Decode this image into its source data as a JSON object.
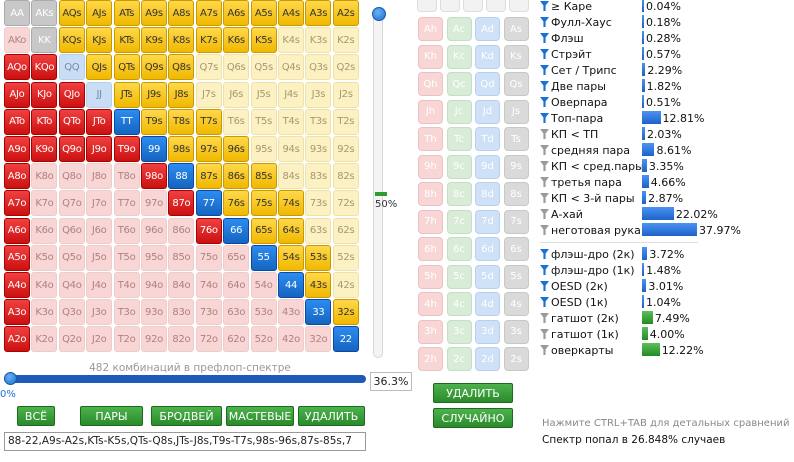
{
  "matrix": {
    "rows": [
      [
        "AA",
        "AKs",
        "AQs",
        "AJs",
        "ATs",
        "A9s",
        "A8s",
        "A7s",
        "A6s",
        "A5s",
        "A4s",
        "A3s",
        "A2s"
      ],
      [
        "AKo",
        "KK",
        "KQs",
        "KJs",
        "KTs",
        "K9s",
        "K8s",
        "K7s",
        "K6s",
        "K5s",
        "K4s",
        "K3s",
        "K2s"
      ],
      [
        "AQo",
        "KQo",
        "QQ",
        "QJs",
        "QTs",
        "Q9s",
        "Q8s",
        "Q7s",
        "Q6s",
        "Q5s",
        "Q4s",
        "Q3s",
        "Q2s"
      ],
      [
        "AJo",
        "KJo",
        "QJo",
        "JJ",
        "JTs",
        "J9s",
        "J8s",
        "J7s",
        "J6s",
        "J5s",
        "J4s",
        "J3s",
        "J2s"
      ],
      [
        "ATo",
        "KTo",
        "QTo",
        "JTo",
        "TT",
        "T9s",
        "T8s",
        "T7s",
        "T6s",
        "T5s",
        "T4s",
        "T3s",
        "T2s"
      ],
      [
        "A9o",
        "K9o",
        "Q9o",
        "J9o",
        "T9o",
        "99",
        "98s",
        "97s",
        "96s",
        "95s",
        "94s",
        "93s",
        "92s"
      ],
      [
        "A8o",
        "K8o",
        "Q8o",
        "J8o",
        "T8o",
        "98o",
        "88",
        "87s",
        "86s",
        "85s",
        "84s",
        "83s",
        "82s"
      ],
      [
        "A7o",
        "K7o",
        "Q7o",
        "J7o",
        "T7o",
        "97o",
        "87o",
        "77",
        "76s",
        "75s",
        "74s",
        "73s",
        "72s"
      ],
      [
        "A6o",
        "K6o",
        "Q6o",
        "J6o",
        "T6o",
        "96o",
        "86o",
        "76o",
        "66",
        "65s",
        "64s",
        "63s",
        "62s"
      ],
      [
        "A5o",
        "K5o",
        "Q5o",
        "J5o",
        "T5o",
        "95o",
        "85o",
        "75o",
        "65o",
        "55",
        "54s",
        "53s",
        "52s"
      ],
      [
        "A4o",
        "K4o",
        "Q4o",
        "J4o",
        "T4o",
        "94o",
        "84o",
        "74o",
        "64o",
        "54o",
        "44",
        "43s",
        "42s"
      ],
      [
        "A3o",
        "K3o",
        "Q3o",
        "J3o",
        "T3o",
        "93o",
        "83o",
        "73o",
        "63o",
        "53o",
        "43o",
        "33",
        "32s"
      ],
      [
        "A2o",
        "K2o",
        "Q2o",
        "J2o",
        "T2o",
        "92o",
        "82o",
        "72o",
        "62o",
        "52o",
        "42o",
        "32o",
        "22"
      ]
    ],
    "states": [
      [
        "g",
        "l",
        "s",
        "s",
        "s",
        "s",
        "s",
        "s",
        "s",
        "s",
        "s",
        "s",
        "s"
      ],
      [
        "p",
        "g",
        "s",
        "s",
        "s",
        "s",
        "s",
        "s",
        "s",
        "s",
        "l",
        "l",
        "l"
      ],
      [
        "o",
        "o",
        "l",
        "s",
        "s",
        "s",
        "s",
        "l",
        "l",
        "l",
        "l",
        "l",
        "l"
      ],
      [
        "o",
        "o",
        "o",
        "l",
        "s",
        "s",
        "s",
        "l",
        "l",
        "l",
        "l",
        "l",
        "l"
      ],
      [
        "o",
        "o",
        "o",
        "o",
        "b",
        "s",
        "s",
        "s",
        "l",
        "l",
        "l",
        "l",
        "l"
      ],
      [
        "o",
        "o",
        "o",
        "o",
        "o",
        "b",
        "s",
        "s",
        "s",
        "l",
        "l",
        "l",
        "l"
      ],
      [
        "o",
        "p",
        "p",
        "p",
        "p",
        "o",
        "b",
        "s",
        "s",
        "s",
        "l",
        "l",
        "l"
      ],
      [
        "o",
        "p",
        "p",
        "p",
        "p",
        "p",
        "o",
        "b",
        "s",
        "s",
        "s",
        "l",
        "l"
      ],
      [
        "o",
        "p",
        "p",
        "p",
        "p",
        "p",
        "p",
        "o",
        "b",
        "s",
        "s",
        "l",
        "l"
      ],
      [
        "o",
        "p",
        "p",
        "p",
        "p",
        "p",
        "p",
        "p",
        "p",
        "b",
        "s",
        "s",
        "l"
      ],
      [
        "o",
        "p",
        "p",
        "p",
        "p",
        "p",
        "p",
        "p",
        "p",
        "p",
        "b",
        "s",
        "l"
      ],
      [
        "o",
        "p",
        "p",
        "p",
        "p",
        "p",
        "p",
        "p",
        "p",
        "p",
        "p",
        "b",
        "s"
      ],
      [
        "o",
        "p",
        "p",
        "p",
        "p",
        "p",
        "p",
        "p",
        "p",
        "p",
        "p",
        "p",
        "b"
      ]
    ],
    "partial_marks": [
      "AQs",
      "AJs",
      "ATs",
      "KQs",
      "KJs",
      "QJs",
      "QTs"
    ]
  },
  "weight_label": "50%",
  "combo_caption": "482 комбинаций в префлоп-спектре",
  "slider_min_label": "0%",
  "range_percent": "36.3%",
  "range_percent_value": 36.3,
  "weight_value": 50,
  "buttons": {
    "all": "ВСЁ",
    "pairs": "ПАРЫ",
    "broadways": "БРОДВЕЙ",
    "suited": "МАСТЕВЫЕ",
    "clear": "УДАЛИТЬ",
    "delete": "УДАЛИТЬ",
    "random": "СЛУЧАЙНО"
  },
  "range_text": "88-22,A9s-A2s,KTs-K5s,QTs-Q8s,JTs-J8s,T9s-T7s,98s-96s,87s-85s,7",
  "board": {
    "ranks": [
      "A",
      "K",
      "Q",
      "J",
      "T",
      "9",
      "8",
      "7",
      "6",
      "5",
      "4",
      "3",
      "2"
    ],
    "suits": [
      "h",
      "c",
      "d",
      "s"
    ]
  },
  "stats_top": [
    {
      "label": "≥ Каре",
      "value": "0.04%",
      "pct": 0.04,
      "filter": "on"
    },
    {
      "label": "Фулл-Хаус",
      "value": "0.18%",
      "pct": 0.18,
      "filter": "on"
    },
    {
      "label": "Флэш",
      "value": "0.28%",
      "pct": 0.28,
      "filter": "on"
    },
    {
      "label": "Стрэйт",
      "value": "0.57%",
      "pct": 0.57,
      "filter": "on"
    },
    {
      "label": "Сет / Трипс",
      "value": "2.29%",
      "pct": 2.29,
      "filter": "on"
    },
    {
      "label": "Две пары",
      "value": "1.82%",
      "pct": 1.82,
      "filter": "on"
    },
    {
      "label": "Оверпара",
      "value": "0.51%",
      "pct": 0.51,
      "filter": "on"
    },
    {
      "label": "Топ-пара",
      "value": "12.81%",
      "pct": 12.81,
      "filter": "on"
    },
    {
      "label": "КП < ТП",
      "value": "2.03%",
      "pct": 2.03,
      "filter": "off"
    },
    {
      "label": "средняя пара",
      "value": "8.61%",
      "pct": 8.61,
      "filter": "off"
    },
    {
      "label": "КП < сред.пары",
      "value": "3.35%",
      "pct": 3.35,
      "filter": "off"
    },
    {
      "label": "третья пара",
      "value": "4.66%",
      "pct": 4.66,
      "filter": "off"
    },
    {
      "label": "КП < 3-й пары",
      "value": "2.87%",
      "pct": 2.87,
      "filter": "off"
    },
    {
      "label": "А-хай",
      "value": "22.02%",
      "pct": 22.02,
      "filter": "off"
    },
    {
      "label": "неготовая рука",
      "value": "37.97%",
      "pct": 37.97,
      "filter": "off"
    }
  ],
  "stats_draws": [
    {
      "label": "флэш-дро (2к)",
      "value": "3.72%",
      "pct": 3.72,
      "filter": "on"
    },
    {
      "label": "флэш-дро (1к)",
      "value": "1.48%",
      "pct": 1.48,
      "filter": "on"
    },
    {
      "label": "OESD (2к)",
      "value": "3.01%",
      "pct": 3.01,
      "filter": "on"
    },
    {
      "label": "OESD (1к)",
      "value": "1.04%",
      "pct": 1.04,
      "filter": "on"
    },
    {
      "label": "гатшот (2к)",
      "value": "7.49%",
      "pct": 7.49,
      "filter": "off"
    },
    {
      "label": "гатшот (1к)",
      "value": "4.00%",
      "pct": 4.0,
      "filter": "off"
    },
    {
      "label": "оверкарты",
      "value": "12.22%",
      "pct": 12.22,
      "filter": "off"
    }
  ],
  "hint": "Нажмите CTRL+TAB для детальных сравнений",
  "hit_summary": "Спектр попал в 26.848% случаев"
}
